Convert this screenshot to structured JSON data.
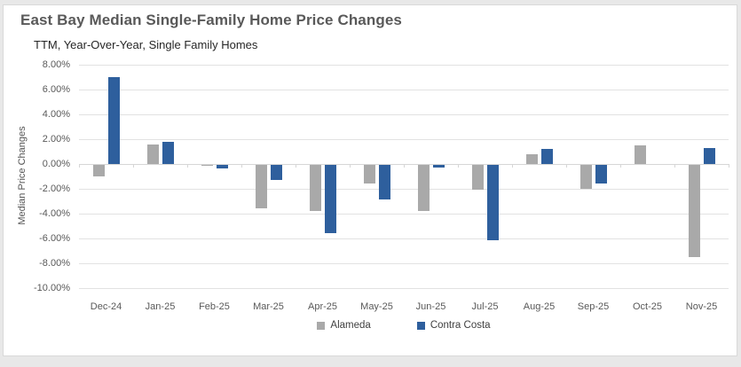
{
  "page": {
    "background_color": "#e8e8e8",
    "card_background": "#ffffff",
    "card_border_color": "#d9d9d9"
  },
  "header": {
    "title": "East Bay Median Single-Family Home Price Changes",
    "subtitle": "TTM, Year-Over-Year, Single Family Homes"
  },
  "chart_data": {
    "type": "bar",
    "title": "East Bay Median Single-Family Home Price Changes",
    "subtitle": "TTM, Year-Over-Year, Single Family Homes",
    "categories": [
      "Dec-24",
      "Jan-25",
      "Feb-25",
      "Mar-25",
      "Apr-25",
      "May-25",
      "Jun-25",
      "Jul-25",
      "Aug-25",
      "Sep-25",
      "Oct-25",
      "Nov-25"
    ],
    "series": [
      {
        "name": "Alameda",
        "color": "#a9a9a9",
        "values": [
          -0.9,
          1.6,
          -0.1,
          -3.5,
          -3.7,
          -1.5,
          -3.7,
          -2.0,
          0.8,
          -1.9,
          1.5,
          -7.4
        ]
      },
      {
        "name": "Contra Costa",
        "color": "#2e5f9d",
        "values": [
          7.0,
          1.8,
          -0.3,
          -1.2,
          -5.5,
          -2.8,
          -0.2,
          -6.1,
          1.2,
          -1.5,
          0.0,
          1.3
        ]
      }
    ],
    "xlabel": "",
    "ylabel": "Median Price Changes",
    "ylim": [
      -10,
      8
    ],
    "ytick_step": 2,
    "ytick_labels": [
      "8.00%",
      "6.00%",
      "4.00%",
      "2.00%",
      "0.00%",
      "-2.00%",
      "-4.00%",
      "-6.00%",
      "-8.00%",
      "-10.00%"
    ],
    "value_unit": "%",
    "grid": true,
    "legend_position": "bottom"
  }
}
